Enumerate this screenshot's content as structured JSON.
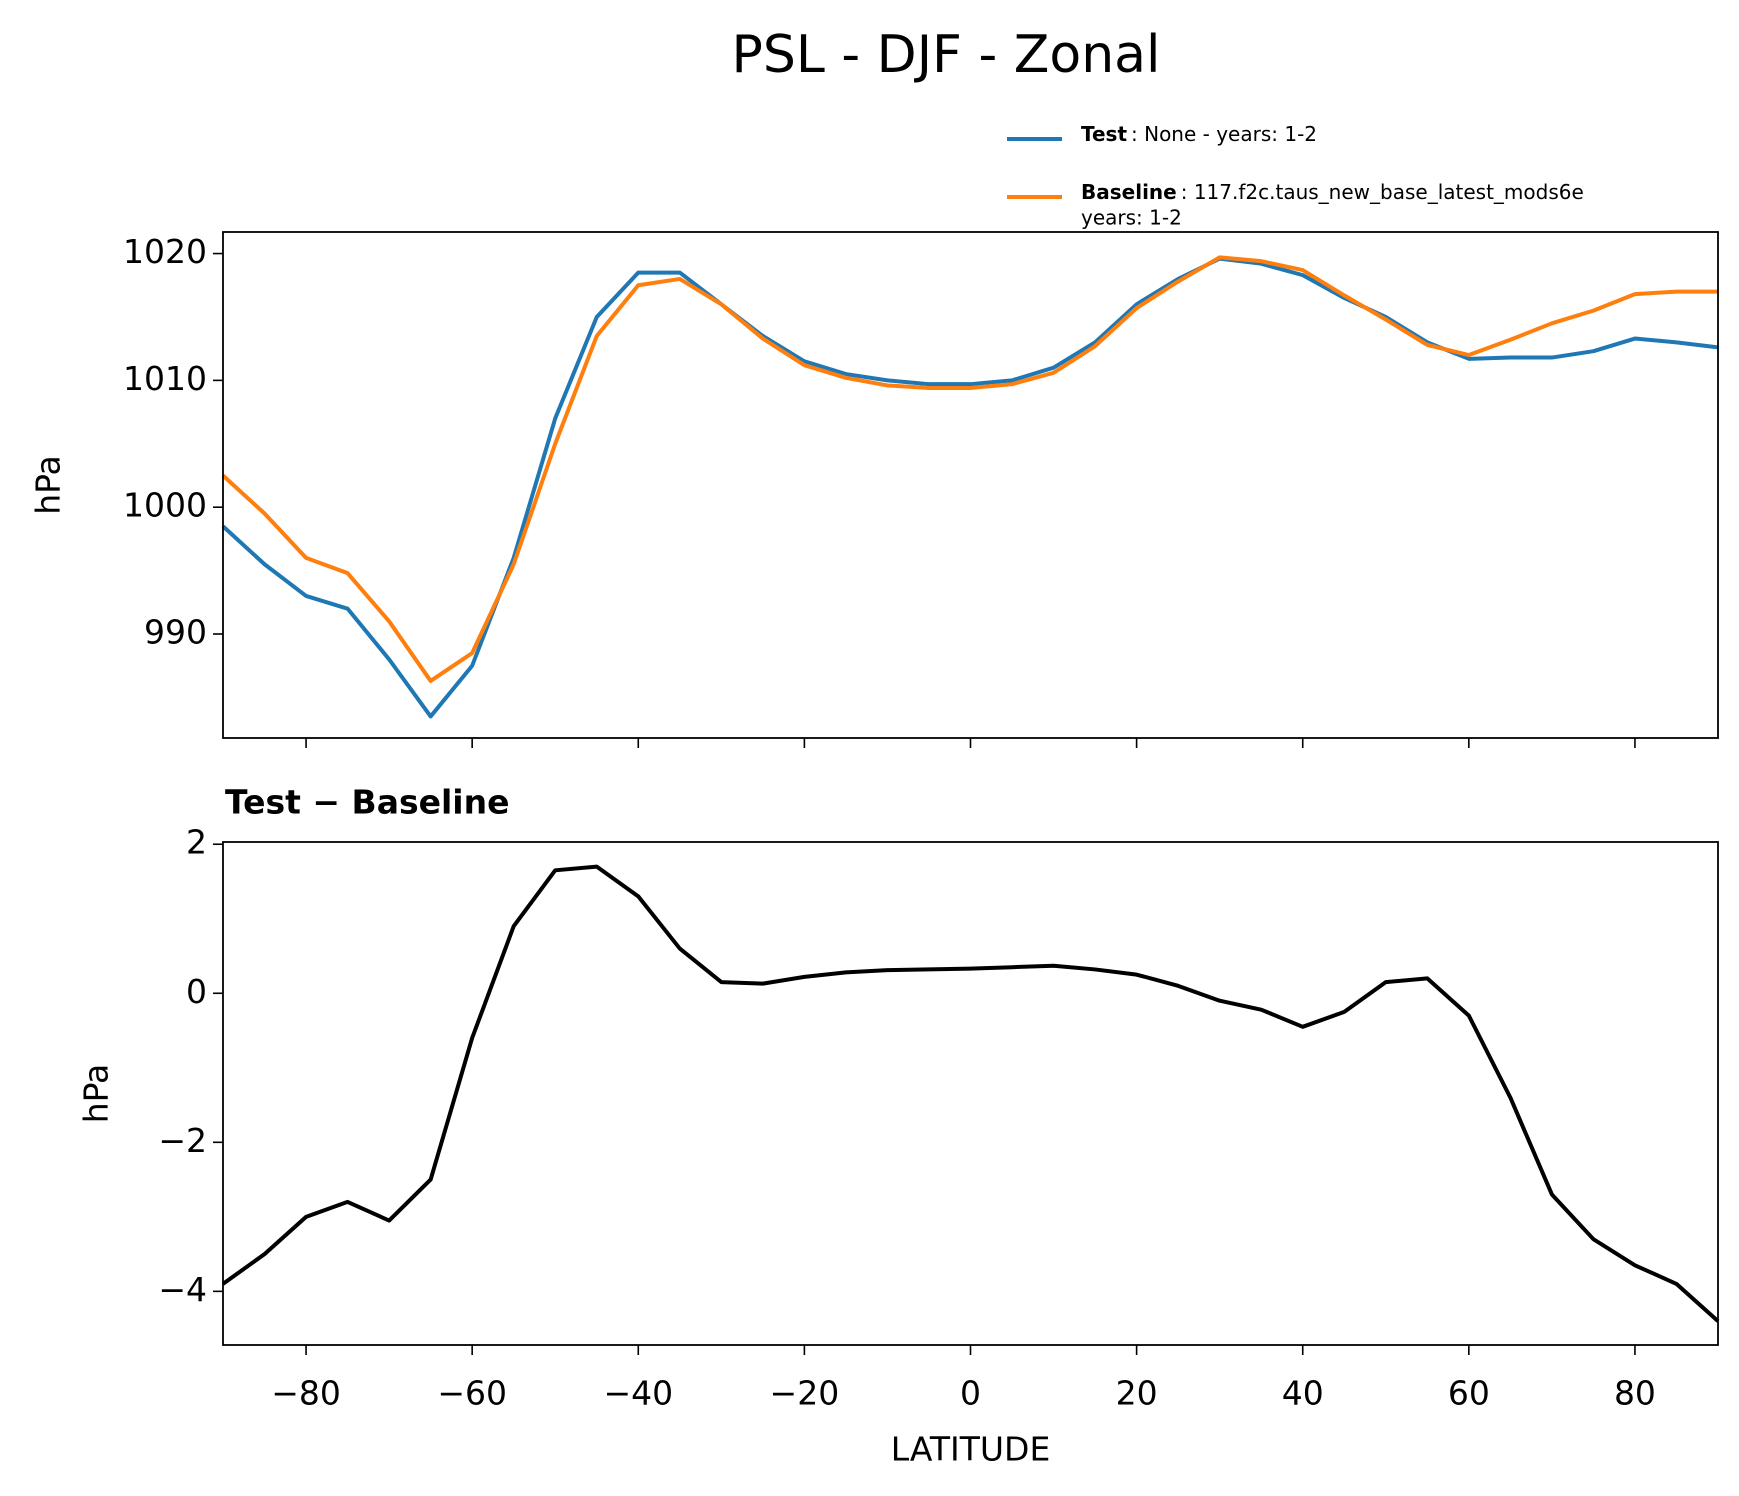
{
  "title": "PSL - DJF - Zonal",
  "chart_data": [
    {
      "type": "line",
      "ylabel": "hPa",
      "xlim": [
        -90,
        90
      ],
      "ylim": [
        981.8,
        1021.7
      ],
      "xticks": [
        -80,
        -60,
        -40,
        -20,
        0,
        20,
        40,
        60,
        80
      ],
      "yticks": [
        990,
        1000,
        1010,
        1020
      ],
      "x": [
        -90,
        -85,
        -80,
        -75,
        -70,
        -65,
        -60,
        -55,
        -50,
        -45,
        -40,
        -35,
        -30,
        -25,
        -20,
        -15,
        -10,
        -5,
        0,
        5,
        10,
        15,
        20,
        25,
        30,
        35,
        40,
        45,
        50,
        55,
        60,
        65,
        70,
        75,
        80,
        85,
        90
      ],
      "series": [
        {
          "name": "Test",
          "description": [
            ": None - years: 1-2"
          ],
          "color": "#1f77b4",
          "values": [
            998.5,
            995.5,
            993,
            992,
            988,
            983.5,
            987.5,
            996,
            1007,
            1015,
            1018.5,
            1018.5,
            1016,
            1013.5,
            1011.5,
            1010.5,
            1010,
            1009.7,
            1009.7,
            1010,
            1011,
            1013,
            1016,
            1018,
            1019.6,
            1019.2,
            1018.3,
            1016.5,
            1015,
            1013,
            1011.7,
            1011.8,
            1011.8,
            1012.3,
            1013.3,
            1013,
            1012.6
          ]
        },
        {
          "name": "Baseline",
          "description": [
            ": 117.f2c.taus_new_base_latest_mods6e",
            "years: 1-2"
          ],
          "color": "#ff7f0e",
          "values": [
            1002.5,
            999.5,
            996,
            994.8,
            991,
            986.3,
            988.5,
            995.5,
            1005,
            1013.5,
            1017.5,
            1018,
            1016,
            1013.3,
            1011.2,
            1010.2,
            1009.6,
            1009.4,
            1009.4,
            1009.7,
            1010.6,
            1012.7,
            1015.7,
            1017.8,
            1019.7,
            1019.4,
            1018.7,
            1016.7,
            1014.8,
            1012.8,
            1012,
            1013.2,
            1014.5,
            1015.5,
            1016.8,
            1017,
            1017
          ]
        }
      ]
    },
    {
      "type": "line",
      "title": "Test − Baseline",
      "ylabel": "hPa",
      "xlabel": "LATITUDE",
      "xlim": [
        -90,
        90
      ],
      "ylim": [
        -4.72,
        2.03
      ],
      "xticks": [
        {
          "value": -80,
          "label": "−80"
        },
        {
          "value": -60,
          "label": "−60"
        },
        {
          "value": -40,
          "label": "−40"
        },
        {
          "value": -20,
          "label": "−20"
        },
        0,
        20,
        40,
        60,
        80
      ],
      "yticks": [
        {
          "value": -4,
          "label": "−4"
        },
        {
          "value": -2,
          "label": "−2"
        },
        0,
        2
      ],
      "x": [
        -90,
        -85,
        -80,
        -75,
        -70,
        -65,
        -60,
        -55,
        -50,
        -45,
        -40,
        -35,
        -30,
        -25,
        -20,
        -15,
        -10,
        -5,
        0,
        5,
        10,
        15,
        20,
        25,
        30,
        35,
        40,
        45,
        50,
        55,
        60,
        65,
        70,
        75,
        80,
        85,
        90
      ],
      "series": [
        {
          "color": "#000000",
          "values": [
            -3.9,
            -3.5,
            -3.0,
            -2.8,
            -3.05,
            -2.5,
            -0.6,
            0.9,
            1.65,
            1.7,
            1.3,
            0.6,
            0.15,
            0.13,
            0.22,
            0.28,
            0.31,
            0.32,
            0.33,
            0.35,
            0.37,
            0.32,
            0.25,
            0.1,
            -0.1,
            -0.22,
            -0.45,
            -0.25,
            0.15,
            0.2,
            -0.3,
            -1.4,
            -2.7,
            -3.3,
            -3.65,
            -3.9,
            -4.4
          ]
        }
      ]
    }
  ]
}
